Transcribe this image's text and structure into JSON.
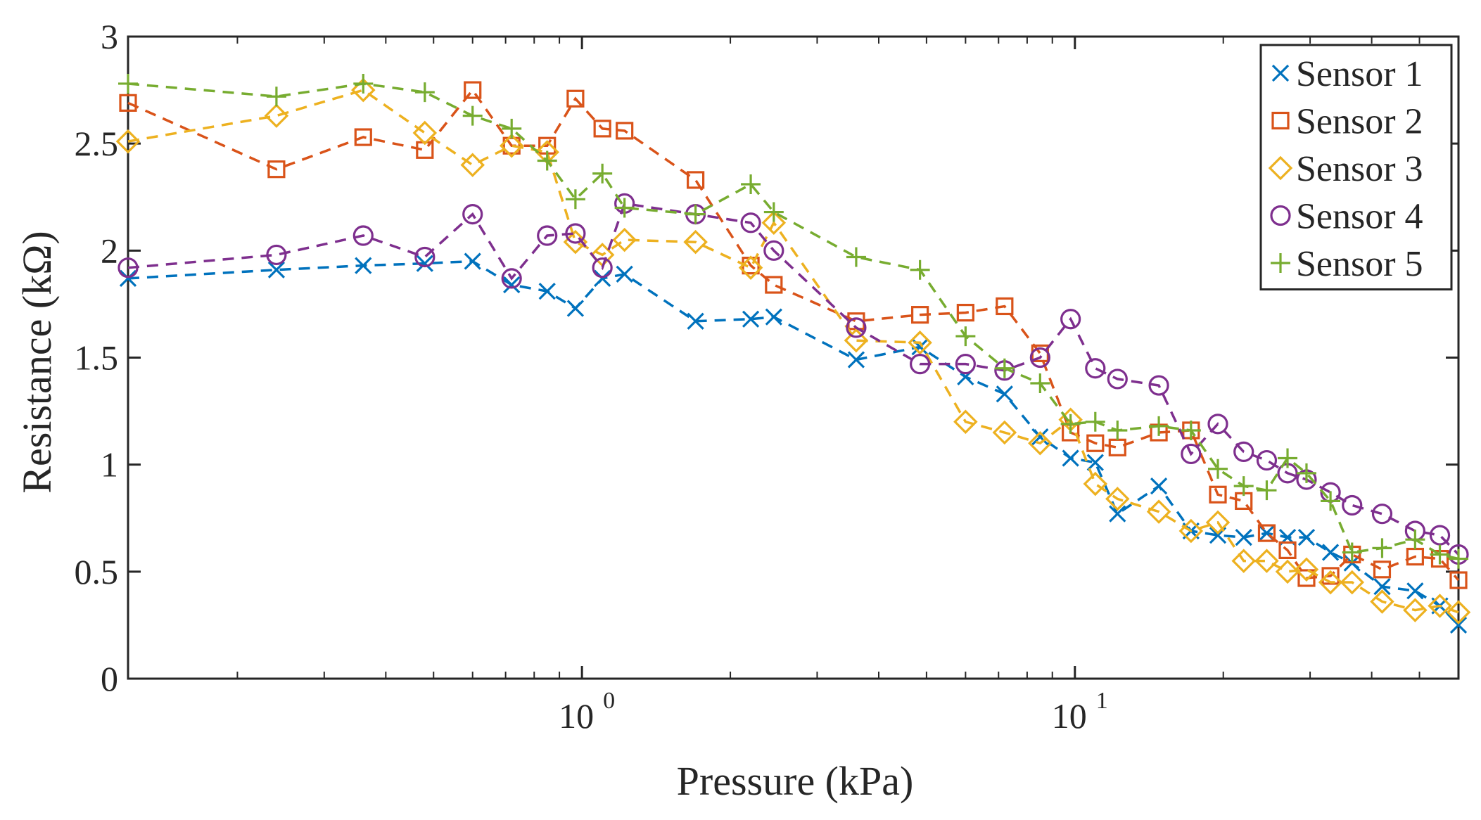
{
  "chart_data": {
    "type": "line",
    "title": "",
    "xlabel": "Pressure (kPa)",
    "ylabel": "Resistance (kΩ)",
    "xscale": "log",
    "xlim": [
      0.12,
      60
    ],
    "ylim": [
      0,
      3
    ],
    "grid": false,
    "legend_position": "top-right",
    "x_ticks": [
      {
        "value": 1,
        "base": "10",
        "exp": "0"
      },
      {
        "value": 10,
        "base": "10",
        "exp": "1"
      }
    ],
    "y_ticks": [
      {
        "value": 0,
        "label": "0"
      },
      {
        "value": 0.5,
        "label": "0.5"
      },
      {
        "value": 1,
        "label": "1"
      },
      {
        "value": 1.5,
        "label": "1.5"
      },
      {
        "value": 2,
        "label": "2"
      },
      {
        "value": 2.5,
        "label": "2.5"
      },
      {
        "value": 3,
        "label": "3"
      }
    ],
    "series": [
      {
        "name": "Sensor 1",
        "marker": "x",
        "color": "#0072BD",
        "x": [
          0.12,
          0.24,
          0.36,
          0.48,
          0.6,
          0.72,
          0.85,
          0.97,
          1.1,
          1.22,
          1.7,
          2.2,
          2.45,
          3.6,
          4.85,
          6.0,
          7.2,
          8.5,
          9.8,
          11.0,
          12.2,
          14.8,
          17.2,
          19.5,
          22.0,
          24.5,
          27.0,
          29.5,
          33.0,
          36.5,
          42.0,
          49.0,
          55.0,
          60.0
        ],
        "y": [
          1.87,
          1.91,
          1.93,
          1.94,
          1.95,
          1.84,
          1.81,
          1.73,
          1.87,
          1.89,
          1.67,
          1.68,
          1.69,
          1.49,
          1.55,
          1.41,
          1.33,
          1.13,
          1.03,
          1.01,
          0.77,
          0.9,
          0.69,
          0.67,
          0.66,
          0.68,
          0.66,
          0.66,
          0.59,
          0.54,
          0.43,
          0.41,
          0.34,
          0.25
        ]
      },
      {
        "name": "Sensor 2",
        "marker": "square",
        "color": "#D95319",
        "x": [
          0.12,
          0.24,
          0.36,
          0.48,
          0.6,
          0.72,
          0.85,
          0.97,
          1.1,
          1.22,
          1.7,
          2.2,
          2.45,
          3.6,
          4.85,
          6.0,
          7.2,
          8.5,
          9.8,
          11.0,
          12.2,
          14.8,
          17.2,
          19.5,
          22.0,
          24.5,
          27.0,
          29.5,
          33.0,
          36.5,
          42.0,
          49.0,
          55.0,
          60.0
        ],
        "y": [
          2.69,
          2.38,
          2.53,
          2.47,
          2.75,
          2.49,
          2.49,
          2.71,
          2.57,
          2.56,
          2.33,
          1.93,
          1.84,
          1.67,
          1.7,
          1.71,
          1.74,
          1.52,
          1.15,
          1.1,
          1.08,
          1.15,
          1.16,
          0.86,
          0.83,
          0.68,
          0.6,
          0.47,
          0.48,
          0.58,
          0.51,
          0.57,
          0.56,
          0.46
        ]
      },
      {
        "name": "Sensor 3",
        "marker": "diamond",
        "color": "#EDB120",
        "x": [
          0.12,
          0.24,
          0.36,
          0.48,
          0.6,
          0.72,
          0.85,
          0.97,
          1.1,
          1.22,
          1.7,
          2.2,
          2.45,
          3.6,
          4.85,
          6.0,
          7.2,
          8.5,
          9.8,
          11.0,
          12.2,
          14.8,
          17.2,
          19.5,
          22.0,
          24.5,
          27.0,
          29.5,
          33.0,
          36.5,
          42.0,
          49.0,
          55.0,
          60.0
        ],
        "y": [
          2.51,
          2.63,
          2.75,
          2.55,
          2.4,
          2.49,
          2.46,
          2.04,
          1.98,
          2.05,
          2.04,
          1.92,
          2.13,
          1.58,
          1.57,
          1.2,
          1.15,
          1.1,
          1.21,
          0.91,
          0.84,
          0.78,
          0.69,
          0.73,
          0.55,
          0.55,
          0.5,
          0.51,
          0.45,
          0.45,
          0.36,
          0.32,
          0.34,
          0.31
        ]
      },
      {
        "name": "Sensor 4",
        "marker": "circle",
        "color": "#7E2F8E",
        "x": [
          0.12,
          0.24,
          0.36,
          0.48,
          0.6,
          0.72,
          0.85,
          0.97,
          1.1,
          1.22,
          1.7,
          2.2,
          2.45,
          3.6,
          4.85,
          6.0,
          7.2,
          8.5,
          9.8,
          11.0,
          12.2,
          14.8,
          17.2,
          19.5,
          22.0,
          24.5,
          27.0,
          29.5,
          33.0,
          36.5,
          42.0,
          49.0,
          55.0,
          60.0
        ],
        "y": [
          1.92,
          1.98,
          2.07,
          1.97,
          2.17,
          1.87,
          2.07,
          2.08,
          1.92,
          2.22,
          2.17,
          2.13,
          2.0,
          1.64,
          1.47,
          1.47,
          1.44,
          1.5,
          1.68,
          1.45,
          1.4,
          1.37,
          1.05,
          1.19,
          1.06,
          1.02,
          0.96,
          0.93,
          0.87,
          0.81,
          0.77,
          0.69,
          0.67,
          0.58
        ]
      },
      {
        "name": "Sensor 5",
        "marker": "plus",
        "color": "#77AC30",
        "x": [
          0.12,
          0.24,
          0.36,
          0.48,
          0.6,
          0.72,
          0.85,
          0.97,
          1.1,
          1.22,
          1.7,
          2.2,
          2.45,
          3.6,
          4.85,
          6.0,
          7.2,
          8.5,
          9.8,
          11.0,
          12.2,
          14.8,
          17.2,
          19.5,
          22.0,
          24.5,
          27.0,
          29.5,
          33.0,
          36.5,
          42.0,
          49.0,
          55.0,
          60.0
        ],
        "y": [
          2.78,
          2.72,
          2.78,
          2.74,
          2.63,
          2.57,
          2.42,
          2.24,
          2.36,
          2.2,
          2.17,
          2.31,
          2.18,
          1.97,
          1.91,
          1.6,
          1.45,
          1.38,
          1.19,
          1.2,
          1.16,
          1.18,
          1.16,
          0.98,
          0.9,
          0.88,
          1.03,
          0.96,
          0.83,
          0.59,
          0.61,
          0.65,
          0.58,
          0.56
        ]
      }
    ]
  }
}
